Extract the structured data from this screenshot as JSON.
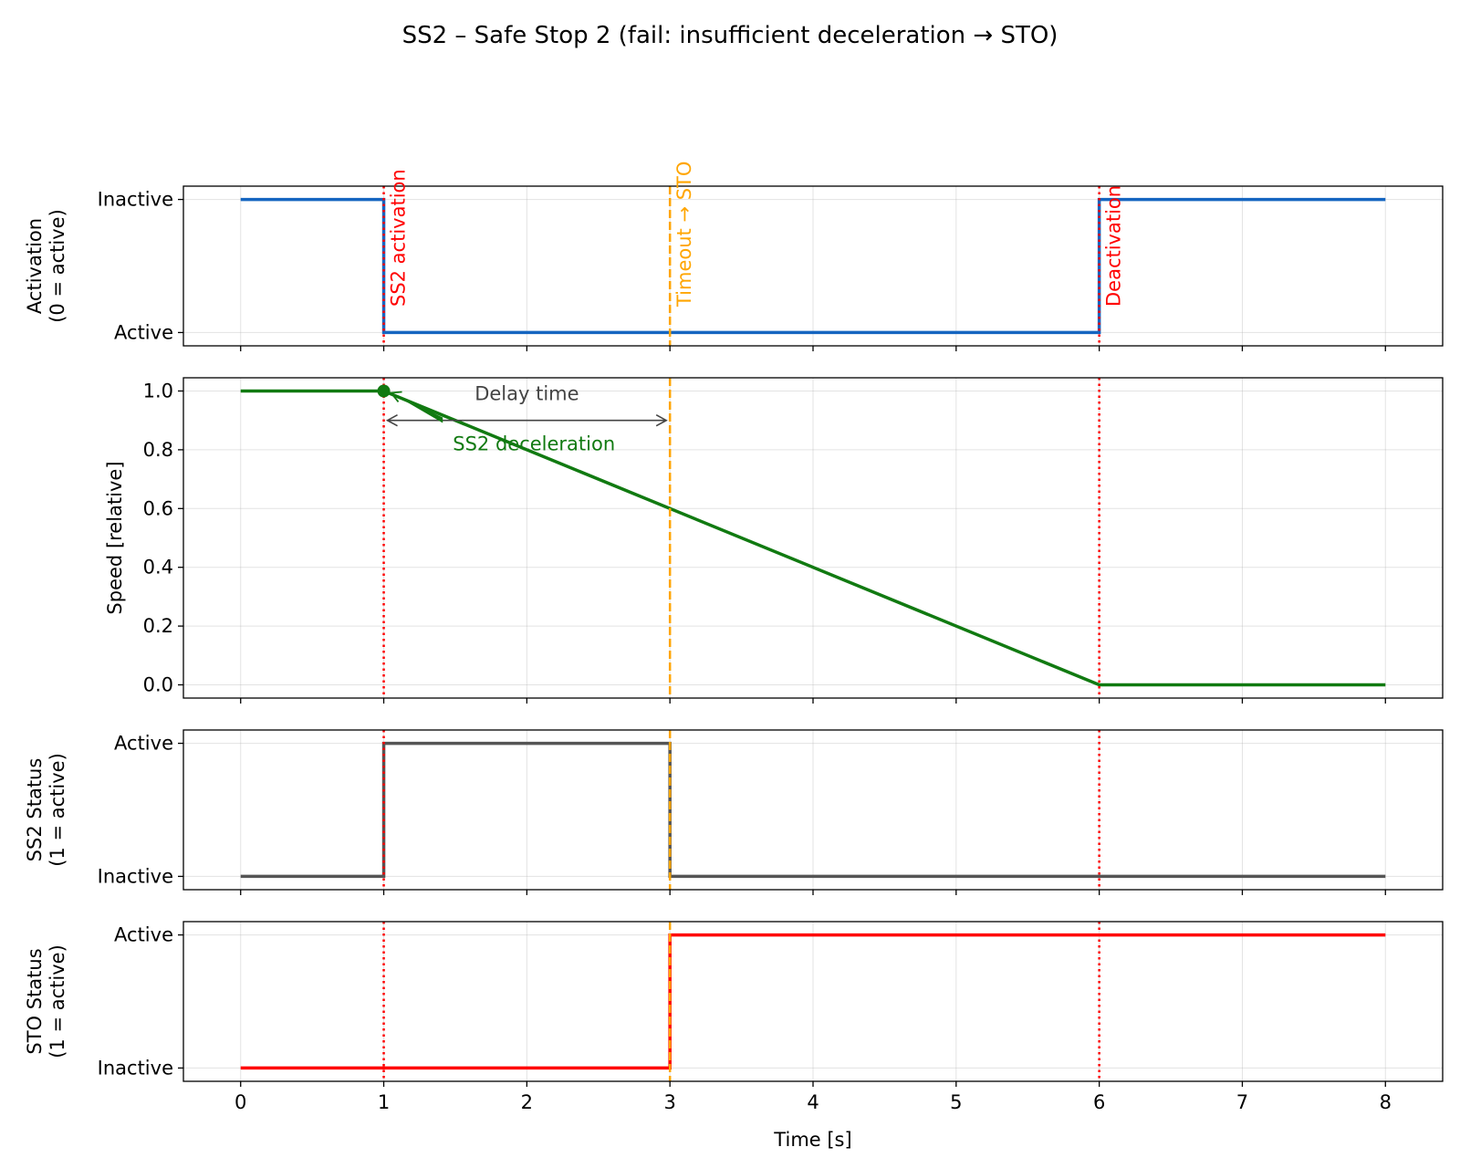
{
  "chart_data": {
    "type": "line",
    "title": "SS2 – Safe Stop 2 (fail: insufficient deceleration → STO)",
    "xlabel": "Time [s]",
    "xlim": [
      -0.4,
      8.4
    ],
    "x_ticks": [
      "0",
      "1",
      "2",
      "3",
      "4",
      "5",
      "6",
      "7",
      "8"
    ],
    "grid": true,
    "events": [
      {
        "t": 1,
        "label": "SS2 activation",
        "color": "#ff0000",
        "style": "dotted"
      },
      {
        "t": 3,
        "label": "Timeout → STO",
        "color": "#ffa500",
        "style": "dashed"
      },
      {
        "t": 6,
        "label": "Deactivation",
        "color": "#ff0000",
        "style": "dotted"
      }
    ],
    "panels": [
      {
        "id": "activation",
        "ylabel": [
          "Activation",
          "(0 = active)"
        ],
        "ylim": [
          -0.1,
          1.1
        ],
        "y_ticks": [
          {
            "value": 0,
            "label": "Active"
          },
          {
            "value": 1,
            "label": "Inactive"
          }
        ],
        "series": [
          {
            "color": "#1565c0",
            "step": true,
            "x": [
              0,
              1,
              6,
              8
            ],
            "y": [
              1,
              0,
              1,
              1
            ]
          }
        ]
      },
      {
        "id": "speed",
        "ylabel": [
          "Speed [relative]"
        ],
        "ylim": [
          -0.045,
          1.045
        ],
        "y_ticks": [
          {
            "value": 0.0,
            "label": "0.0"
          },
          {
            "value": 0.2,
            "label": "0.2"
          },
          {
            "value": 0.4,
            "label": "0.4"
          },
          {
            "value": 0.6,
            "label": "0.6"
          },
          {
            "value": 0.8,
            "label": "0.8"
          },
          {
            "value": 1.0,
            "label": "1.0"
          }
        ],
        "series": [
          {
            "color": "#117a11",
            "step": false,
            "x": [
              0,
              1,
              6,
              8
            ],
            "y": [
              1.0,
              1.0,
              0.0,
              0.0
            ]
          }
        ],
        "marker": {
          "x": 1,
          "y": 1.0,
          "color": "#117a11"
        },
        "annotations": {
          "delay": {
            "text": "Delay time",
            "x_from": 1.0,
            "x_to": 3.0,
            "y": 0.9,
            "text_x": 2.0,
            "text_y": 0.99,
            "color": "#444444"
          },
          "decel": {
            "text": "SS2 deceleration",
            "text_x": 2.05,
            "text_y": 0.82,
            "point_x": 1.0,
            "point_y": 1.0,
            "color": "#117a11"
          }
        }
      },
      {
        "id": "ss2",
        "ylabel": [
          "SS2 Status",
          "(1 = active)"
        ],
        "ylim": [
          -0.1,
          1.1
        ],
        "y_ticks": [
          {
            "value": 0,
            "label": "Inactive"
          },
          {
            "value": 1,
            "label": "Active"
          }
        ],
        "series": [
          {
            "color": "#555555",
            "step": true,
            "x": [
              0,
              1,
              3,
              8
            ],
            "y": [
              0,
              1,
              0,
              0
            ]
          }
        ]
      },
      {
        "id": "sto",
        "ylabel": [
          "STO Status",
          "(1 = active)"
        ],
        "ylim": [
          -0.1,
          1.1
        ],
        "y_ticks": [
          {
            "value": 0,
            "label": "Inactive"
          },
          {
            "value": 1,
            "label": "Active"
          }
        ],
        "series": [
          {
            "color": "#ff0000",
            "step": true,
            "x": [
              0,
              3,
              8
            ],
            "y": [
              0,
              1,
              1
            ]
          }
        ]
      }
    ]
  }
}
